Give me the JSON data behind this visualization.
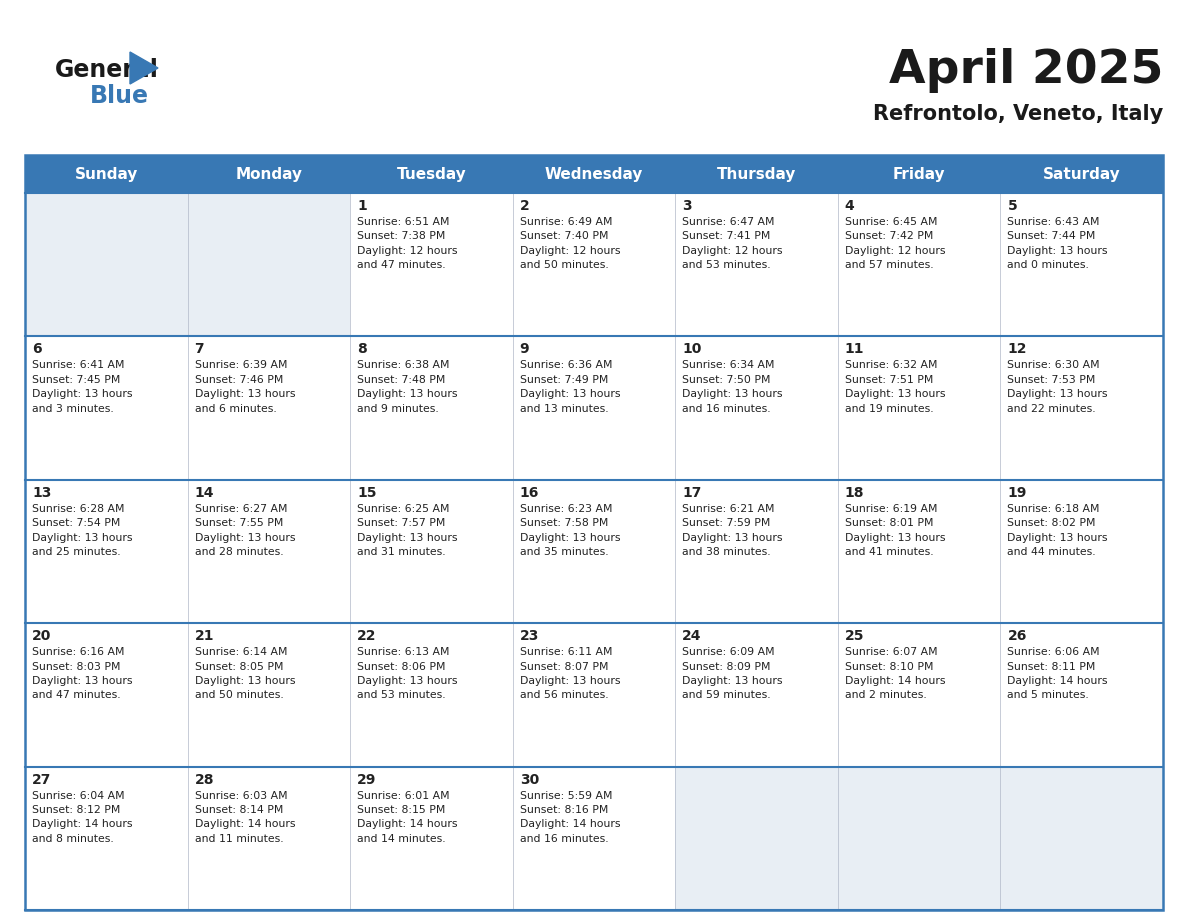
{
  "title": "April 2025",
  "subtitle": "Refrontolo, Veneto, Italy",
  "days_of_week": [
    "Sunday",
    "Monday",
    "Tuesday",
    "Wednesday",
    "Thursday",
    "Friday",
    "Saturday"
  ],
  "header_bg": "#3878b4",
  "header_text": "#ffffff",
  "cell_bg_light": "#e8eef4",
  "cell_bg_white": "#ffffff",
  "border_color": "#3878b4",
  "row_divider_color": "#3878b4",
  "text_color": "#222222",
  "calendar": [
    [
      {
        "day": "",
        "info": ""
      },
      {
        "day": "",
        "info": ""
      },
      {
        "day": "1",
        "info": "Sunrise: 6:51 AM\nSunset: 7:38 PM\nDaylight: 12 hours\nand 47 minutes."
      },
      {
        "day": "2",
        "info": "Sunrise: 6:49 AM\nSunset: 7:40 PM\nDaylight: 12 hours\nand 50 minutes."
      },
      {
        "day": "3",
        "info": "Sunrise: 6:47 AM\nSunset: 7:41 PM\nDaylight: 12 hours\nand 53 minutes."
      },
      {
        "day": "4",
        "info": "Sunrise: 6:45 AM\nSunset: 7:42 PM\nDaylight: 12 hours\nand 57 minutes."
      },
      {
        "day": "5",
        "info": "Sunrise: 6:43 AM\nSunset: 7:44 PM\nDaylight: 13 hours\nand 0 minutes."
      }
    ],
    [
      {
        "day": "6",
        "info": "Sunrise: 6:41 AM\nSunset: 7:45 PM\nDaylight: 13 hours\nand 3 minutes."
      },
      {
        "day": "7",
        "info": "Sunrise: 6:39 AM\nSunset: 7:46 PM\nDaylight: 13 hours\nand 6 minutes."
      },
      {
        "day": "8",
        "info": "Sunrise: 6:38 AM\nSunset: 7:48 PM\nDaylight: 13 hours\nand 9 minutes."
      },
      {
        "day": "9",
        "info": "Sunrise: 6:36 AM\nSunset: 7:49 PM\nDaylight: 13 hours\nand 13 minutes."
      },
      {
        "day": "10",
        "info": "Sunrise: 6:34 AM\nSunset: 7:50 PM\nDaylight: 13 hours\nand 16 minutes."
      },
      {
        "day": "11",
        "info": "Sunrise: 6:32 AM\nSunset: 7:51 PM\nDaylight: 13 hours\nand 19 minutes."
      },
      {
        "day": "12",
        "info": "Sunrise: 6:30 AM\nSunset: 7:53 PM\nDaylight: 13 hours\nand 22 minutes."
      }
    ],
    [
      {
        "day": "13",
        "info": "Sunrise: 6:28 AM\nSunset: 7:54 PM\nDaylight: 13 hours\nand 25 minutes."
      },
      {
        "day": "14",
        "info": "Sunrise: 6:27 AM\nSunset: 7:55 PM\nDaylight: 13 hours\nand 28 minutes."
      },
      {
        "day": "15",
        "info": "Sunrise: 6:25 AM\nSunset: 7:57 PM\nDaylight: 13 hours\nand 31 minutes."
      },
      {
        "day": "16",
        "info": "Sunrise: 6:23 AM\nSunset: 7:58 PM\nDaylight: 13 hours\nand 35 minutes."
      },
      {
        "day": "17",
        "info": "Sunrise: 6:21 AM\nSunset: 7:59 PM\nDaylight: 13 hours\nand 38 minutes."
      },
      {
        "day": "18",
        "info": "Sunrise: 6:19 AM\nSunset: 8:01 PM\nDaylight: 13 hours\nand 41 minutes."
      },
      {
        "day": "19",
        "info": "Sunrise: 6:18 AM\nSunset: 8:02 PM\nDaylight: 13 hours\nand 44 minutes."
      }
    ],
    [
      {
        "day": "20",
        "info": "Sunrise: 6:16 AM\nSunset: 8:03 PM\nDaylight: 13 hours\nand 47 minutes."
      },
      {
        "day": "21",
        "info": "Sunrise: 6:14 AM\nSunset: 8:05 PM\nDaylight: 13 hours\nand 50 minutes."
      },
      {
        "day": "22",
        "info": "Sunrise: 6:13 AM\nSunset: 8:06 PM\nDaylight: 13 hours\nand 53 minutes."
      },
      {
        "day": "23",
        "info": "Sunrise: 6:11 AM\nSunset: 8:07 PM\nDaylight: 13 hours\nand 56 minutes."
      },
      {
        "day": "24",
        "info": "Sunrise: 6:09 AM\nSunset: 8:09 PM\nDaylight: 13 hours\nand 59 minutes."
      },
      {
        "day": "25",
        "info": "Sunrise: 6:07 AM\nSunset: 8:10 PM\nDaylight: 14 hours\nand 2 minutes."
      },
      {
        "day": "26",
        "info": "Sunrise: 6:06 AM\nSunset: 8:11 PM\nDaylight: 14 hours\nand 5 minutes."
      }
    ],
    [
      {
        "day": "27",
        "info": "Sunrise: 6:04 AM\nSunset: 8:12 PM\nDaylight: 14 hours\nand 8 minutes."
      },
      {
        "day": "28",
        "info": "Sunrise: 6:03 AM\nSunset: 8:14 PM\nDaylight: 14 hours\nand 11 minutes."
      },
      {
        "day": "29",
        "info": "Sunrise: 6:01 AM\nSunset: 8:15 PM\nDaylight: 14 hours\nand 14 minutes."
      },
      {
        "day": "30",
        "info": "Sunrise: 5:59 AM\nSunset: 8:16 PM\nDaylight: 14 hours\nand 16 minutes."
      },
      {
        "day": "",
        "info": ""
      },
      {
        "day": "",
        "info": ""
      },
      {
        "day": "",
        "info": ""
      }
    ]
  ],
  "logo_color_general": "#1a1a1a",
  "logo_color_blue": "#3878b4",
  "logo_triangle_color": "#3878b4",
  "title_fontsize": 34,
  "subtitle_fontsize": 15,
  "day_number_fontsize": 10,
  "info_fontsize": 7.8,
  "header_fontsize": 11
}
